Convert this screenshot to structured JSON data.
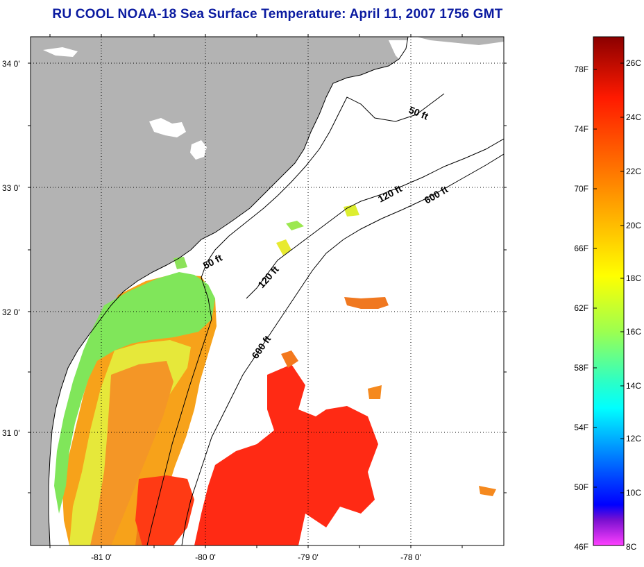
{
  "title": "RU COOL  NOAA-18  Sea Surface Temperature:  April 11, 2007 1756 GMT",
  "map": {
    "lat_labels": [
      "34 0'",
      "33 0'",
      "32 0'",
      "31 0'"
    ],
    "lon_labels": [
      "-81 0'",
      "-80 0'",
      "-79 0'",
      "-78 0'"
    ],
    "isobaths": [
      {
        "label": "50 ft"
      },
      {
        "label": "50 ft"
      },
      {
        "label": "120 ft"
      },
      {
        "label": "120 ft"
      },
      {
        "label": "600 ft"
      },
      {
        "label": "600 ft"
      }
    ],
    "colors": {
      "land": "#b3b3b3",
      "no_data": "#ffffff",
      "title": "#0a1aa0"
    }
  },
  "colorbar": {
    "fahrenheit_labels": [
      "78F",
      "74F",
      "70F",
      "66F",
      "62F",
      "58F",
      "54F",
      "50F",
      "46F"
    ],
    "celsius_labels": [
      "26C",
      "24C",
      "22C",
      "20C",
      "18C",
      "16C",
      "14C",
      "12C",
      "10C",
      "8C"
    ],
    "gradient": [
      "#8b0000",
      "#ff1a00",
      "#ff7a00",
      "#ffd000",
      "#ffff00",
      "#9cff50",
      "#2affc8",
      "#00ffff",
      "#00a0ff",
      "#0040ff",
      "#0000ff",
      "#7a10d0",
      "#ff40ff"
    ]
  }
}
